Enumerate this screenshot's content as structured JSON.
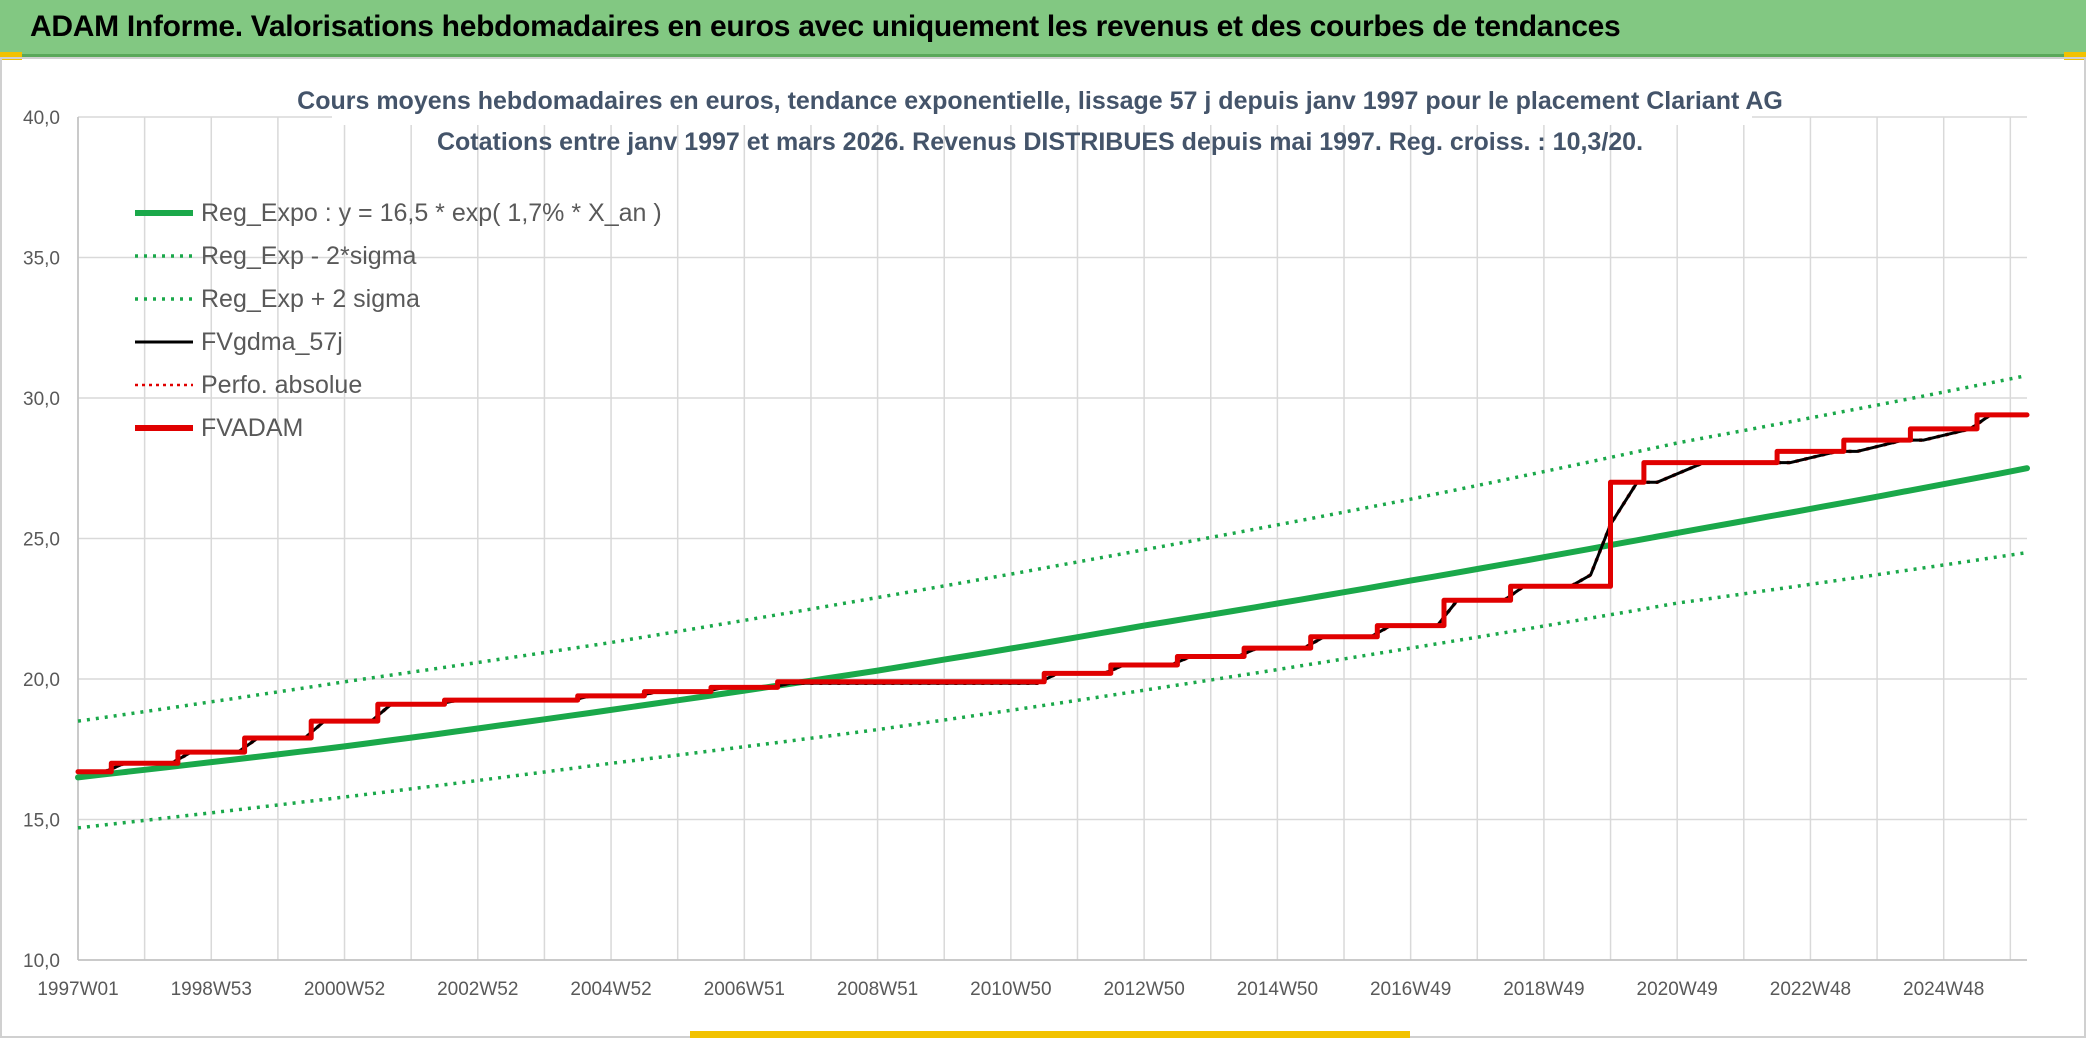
{
  "banner": {
    "title": "ADAM Informe. Valorisations hebdomadaires en euros avec uniquement les revenus et des courbes de tendances"
  },
  "colors": {
    "banner_bg": "#82c882",
    "reg_expo": "#1aa84a",
    "fvgdma": "#000000",
    "perfo": "#e00000",
    "fvadam": "#e00000",
    "grid": "#d9d9d9"
  },
  "chart_data": {
    "type": "line",
    "title_lines": [
      "Cours moyens hebdomadaires en euros, tendance exponentielle, lissage 57 j depuis janv 1997 pour le placement Clariant AG",
      "Cotations entre janv 1997 et mars 2026. Revenus DISTRIBUES depuis mai 1997. Reg. croiss. : 10,3/20."
    ],
    "xlabel": "",
    "ylabel": "",
    "ylim": [
      10,
      40
    ],
    "y_ticks": [
      "10,0",
      "15,0",
      "20,0",
      "25,0",
      "30,0",
      "35,0",
      "40,0"
    ],
    "x_range_years": [
      1997.0,
      2026.25
    ],
    "x_tick_labels": [
      "1997W01",
      "1998W53",
      "2000W52",
      "2002W52",
      "2004W52",
      "2006W51",
      "2008W51",
      "2010W50",
      "2012W50",
      "2014W50",
      "2016W49",
      "2018W49",
      "2020W49",
      "2022W48",
      "2024W48"
    ],
    "grid": true,
    "legend_position": "top-left",
    "legend": [
      "Reg_Expo : y = 16,5 * exp( 1,7% *  X_an )",
      "Reg_Exp - 2*sigma",
      "Reg_Exp + 2 sigma",
      "FVgdma_57j",
      "Perfo. absolue",
      "FVADAM"
    ],
    "series": [
      {
        "name": "Reg_Expo : y = 16,5 * exp( 1,7% *  X_an )",
        "style": "solid-thick",
        "color": "#1aa84a",
        "x": [
          1997.0,
          2001.0,
          2005.0,
          2009.0,
          2013.0,
          2017.0,
          2021.0,
          2026.25
        ],
        "y": [
          16.5,
          17.6,
          18.9,
          20.3,
          21.9,
          23.5,
          25.2,
          27.5
        ]
      },
      {
        "name": "Reg_Exp - 2*sigma",
        "style": "dotted",
        "color": "#1aa84a",
        "x": [
          1997.0,
          2001.0,
          2005.0,
          2009.0,
          2013.0,
          2017.0,
          2021.0,
          2026.25
        ],
        "y": [
          14.7,
          15.8,
          17.0,
          18.2,
          19.6,
          21.1,
          22.7,
          24.5
        ]
      },
      {
        "name": "Reg_Exp + 2 sigma",
        "style": "dotted",
        "color": "#1aa84a",
        "x": [
          1997.0,
          2001.0,
          2005.0,
          2009.0,
          2013.0,
          2017.0,
          2021.0,
          2026.25
        ],
        "y": [
          18.5,
          19.9,
          21.3,
          22.9,
          24.6,
          26.4,
          28.4,
          30.8
        ]
      },
      {
        "name": "FVgdma_57j",
        "style": "solid",
        "color": "#000000",
        "x": [
          1997.0,
          1997.4,
          1997.7,
          1998.4,
          1998.7,
          1999.4,
          1999.7,
          2000.4,
          2000.7,
          2001.4,
          2001.7,
          2002.4,
          2002.7,
          2004.4,
          2004.7,
          2005.4,
          2005.7,
          2006.4,
          2006.7,
          2007.4,
          2007.7,
          2011.4,
          2011.7,
          2012.4,
          2012.7,
          2013.4,
          2013.7,
          2014.4,
          2014.7,
          2015.4,
          2015.7,
          2016.4,
          2016.7,
          2017.4,
          2017.7,
          2018.4,
          2018.7,
          2019.4,
          2019.7,
          2020.0,
          2020.4,
          2020.7,
          2021.4,
          2021.7,
          2022.4,
          2022.7,
          2023.4,
          2023.7,
          2024.4,
          2024.7,
          2025.4,
          2025.7,
          2026.25
        ],
        "y": [
          16.7,
          16.7,
          17.0,
          17.0,
          17.4,
          17.4,
          17.9,
          17.9,
          18.5,
          18.5,
          19.1,
          19.1,
          19.25,
          19.25,
          19.4,
          19.4,
          19.55,
          19.55,
          19.7,
          19.7,
          19.85,
          19.85,
          20.2,
          20.2,
          20.5,
          20.5,
          20.8,
          20.8,
          21.1,
          21.1,
          21.5,
          21.5,
          21.9,
          21.9,
          22.8,
          22.8,
          23.3,
          23.3,
          23.7,
          25.5,
          27.0,
          27.0,
          27.7,
          27.7,
          27.7,
          27.7,
          28.1,
          28.1,
          28.5,
          28.5,
          28.9,
          29.4,
          29.4
        ]
      },
      {
        "name": "Perfo. absolue",
        "style": "dotted",
        "color": "#e00000",
        "x": [
          1997.0,
          1997.4,
          1997.7,
          1998.4,
          1998.7,
          1999.4,
          1999.7,
          2000.4,
          2000.7,
          2001.4,
          2001.7,
          2002.4,
          2002.7,
          2004.4,
          2004.7,
          2005.4,
          2005.7,
          2006.4,
          2006.7,
          2007.4,
          2007.7,
          2011.4,
          2011.7,
          2012.4,
          2012.7,
          2013.4,
          2013.7,
          2014.4,
          2014.7,
          2015.4,
          2015.7,
          2016.4,
          2016.7,
          2017.4,
          2017.7,
          2018.4,
          2018.7,
          2019.4,
          2019.7,
          2020.0,
          2020.4,
          2020.7,
          2021.4,
          2021.7,
          2022.4,
          2022.7,
          2023.4,
          2023.7,
          2024.4,
          2024.7,
          2025.4,
          2025.7,
          2026.25
        ],
        "y": [
          16.7,
          16.7,
          17.0,
          17.0,
          17.4,
          17.4,
          17.9,
          17.9,
          18.5,
          18.5,
          19.1,
          19.1,
          19.25,
          19.25,
          19.4,
          19.4,
          19.55,
          19.55,
          19.7,
          19.7,
          19.85,
          19.85,
          20.2,
          20.2,
          20.5,
          20.5,
          20.8,
          20.8,
          21.1,
          21.1,
          21.5,
          21.5,
          21.9,
          21.9,
          22.8,
          22.8,
          23.3,
          23.3,
          23.7,
          25.5,
          27.0,
          27.0,
          27.7,
          27.7,
          27.7,
          27.7,
          28.1,
          28.1,
          28.5,
          28.5,
          28.9,
          29.4,
          29.4
        ]
      },
      {
        "name": "FVADAM",
        "style": "step-thick",
        "color": "#e00000",
        "x": [
          1997.0,
          1997.5,
          1998.5,
          1999.5,
          2000.5,
          2001.5,
          2002.5,
          2004.5,
          2005.5,
          2006.5,
          2007.5,
          2011.5,
          2012.5,
          2013.5,
          2014.5,
          2015.5,
          2016.5,
          2017.5,
          2018.5,
          2019.5,
          2020.0,
          2020.5,
          2021.5,
          2022.5,
          2023.5,
          2024.5,
          2025.5,
          2026.25
        ],
        "y": [
          16.7,
          17.0,
          17.4,
          17.9,
          18.5,
          19.1,
          19.25,
          19.4,
          19.55,
          19.7,
          19.9,
          20.2,
          20.5,
          20.8,
          21.1,
          21.5,
          21.9,
          22.8,
          23.3,
          23.3,
          27.0,
          27.7,
          27.7,
          28.1,
          28.5,
          28.9,
          29.4,
          29.4
        ]
      }
    ]
  }
}
